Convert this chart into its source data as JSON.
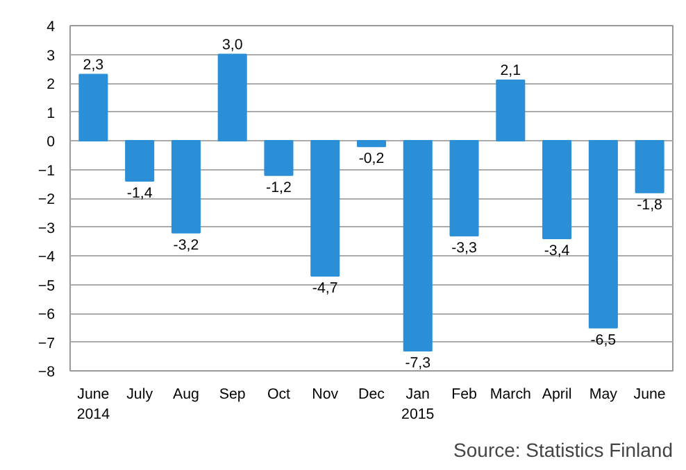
{
  "chart_data": {
    "type": "bar",
    "categories": [
      "June\n2014",
      "July",
      "Aug",
      "Sep",
      "Oct",
      "Nov",
      "Dec",
      "Jan\n2015",
      "Feb",
      "March",
      "April",
      "May",
      "June"
    ],
    "values": [
      2.3,
      -1.4,
      -3.2,
      3.0,
      -1.2,
      -4.7,
      -0.2,
      -7.3,
      -3.3,
      2.1,
      -3.4,
      -6.5,
      -1.8
    ],
    "value_labels": [
      "2,3",
      "-1,4",
      "-3,2",
      "3,0",
      "-1,2",
      "-4,7",
      "-0,2",
      "-7,3",
      "-3,3",
      "2,1",
      "-3,4",
      "-6,5",
      "-1,8"
    ],
    "color": "#2b8fd8",
    "ylim": [
      -8,
      4
    ],
    "yticks": [
      -8,
      -7,
      -6,
      -5,
      -4,
      -3,
      -2,
      -1,
      0,
      1,
      2,
      3,
      4
    ],
    "grid": "y",
    "annotations": [
      "Source: Statistics Finland"
    ]
  }
}
